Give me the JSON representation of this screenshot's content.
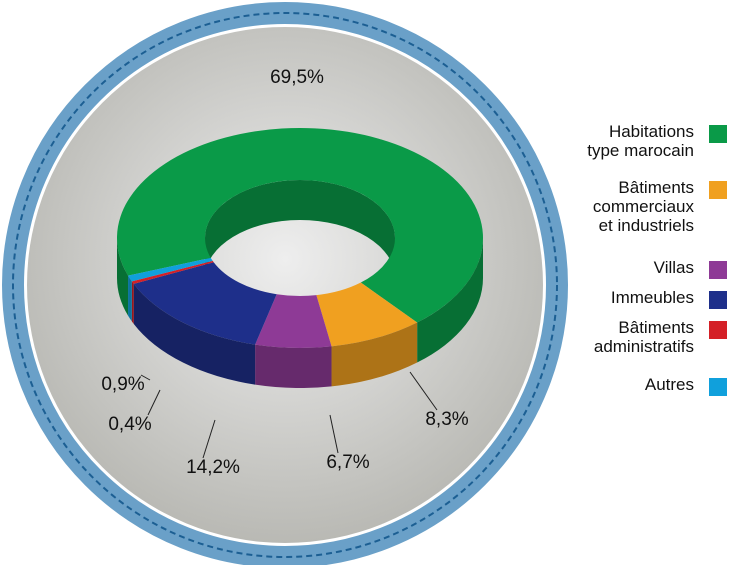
{
  "chart_data": {
    "type": "donut3d",
    "series": [
      {
        "name": "Habitations\ntype marocain",
        "color": "#0a9a48",
        "values": [
          69.5
        ],
        "value_labels": [
          "69,5%"
        ]
      },
      {
        "name": "Bâtiments\ncommerciaux\net industriels",
        "color": "#f0a020",
        "values": [
          8.3
        ],
        "value_labels": [
          "8,3%"
        ]
      },
      {
        "name": "Villas",
        "color": "#8e3a96",
        "values": [
          6.7
        ],
        "value_labels": [
          "6,7%"
        ]
      },
      {
        "name": "Immeubles",
        "color": "#1e2f8a",
        "values": [
          14.2
        ],
        "value_labels": [
          "14,2%"
        ]
      },
      {
        "name": "Bâtiments\nadministratifs",
        "color": "#d42027",
        "values": [
          0.4
        ],
        "value_labels": [
          "0,4%"
        ]
      },
      {
        "name": "Autres",
        "color": "#10a0dc",
        "values": [
          0.9
        ],
        "value_labels": [
          "0,9%"
        ]
      }
    ],
    "legend": "right"
  }
}
